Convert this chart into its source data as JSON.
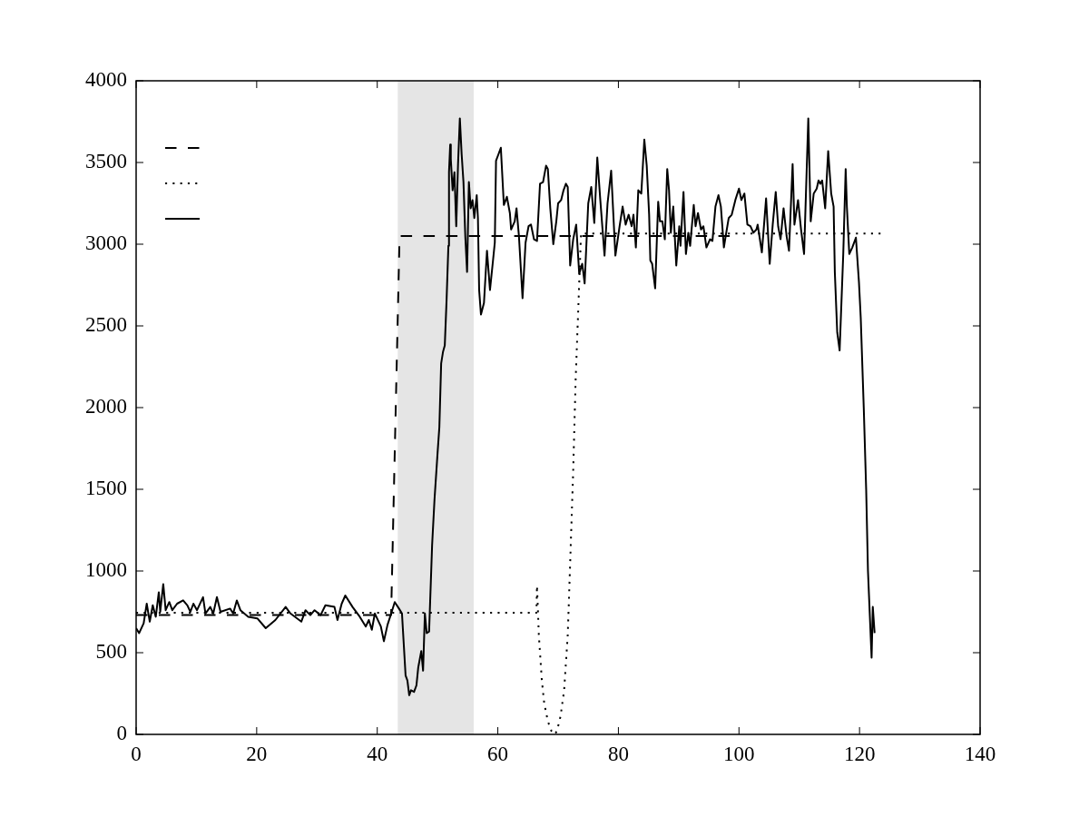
{
  "chart_data": {
    "type": "line",
    "xlim": [
      0,
      140
    ],
    "xticks": [
      0,
      20,
      40,
      60,
      80,
      100,
      120,
      140
    ],
    "ylim": [
      0,
      4000
    ],
    "yticks": [
      0,
      500,
      1000,
      1500,
      2000,
      2500,
      3000,
      3500,
      4000
    ],
    "bands": [
      {
        "axis": "x",
        "from": 43.4,
        "to": 56,
        "color": "#e5e5e5"
      }
    ],
    "series": [
      {
        "color": "#000000",
        "line_style": "dashed",
        "x": [
          0,
          42.3,
          43.7,
          99.0
        ],
        "values": [
          730,
          730,
          3050,
          3050
        ]
      },
      {
        "color": "#000000",
        "line_style": "dotted",
        "x": [
          0,
          66.4,
          66.5,
          66.8,
          67.3,
          67.7,
          68.3,
          68.9,
          69.4,
          69.8,
          70.4,
          71.0,
          71.6,
          72.0,
          72.5,
          72.9,
          73.4,
          73.8,
          123.7
        ],
        "values": [
          745,
          745,
          910,
          610,
          330,
          190,
          80,
          20,
          0,
          20,
          110,
          270,
          610,
          1050,
          1610,
          2160,
          2660,
          3065,
          3065
        ]
      },
      {
        "color": "#000000",
        "line_style": "solid",
        "x": [
          0,
          0.5,
          1.25,
          1.76,
          2.26,
          2.76,
          3.26,
          3.76,
          4.0,
          4.5,
          4.9,
          5.5,
          6.0,
          6.8,
          7.8,
          8.5,
          9.0,
          9.5,
          10.1,
          11.1,
          11.5,
          12.3,
          12.8,
          13.4,
          14.0,
          15.6,
          16.1,
          16.7,
          17.3,
          18.6,
          20.1,
          21.5,
          23.1,
          24.8,
          25.6,
          27.4,
          28.1,
          28.9,
          29.6,
          30.6,
          31.4,
          32.9,
          33.4,
          34.1,
          34.7,
          35.9,
          37.1,
          38.1,
          38.6,
          39.1,
          39.6,
          40.6,
          41.1,
          41.7,
          42.4,
          42.9,
          43.6,
          44.1,
          44.4,
          44.7,
          45.0,
          45.3,
          45.6,
          46.1,
          46.5,
          46.8,
          47.3,
          47.6,
          47.9,
          48.2,
          48.6,
          49.1,
          49.5,
          50.0,
          50.3,
          50.6,
          50.9,
          51.2,
          51.5,
          51.8,
          51.9,
          52.1,
          52.2,
          52.5,
          52.8,
          53.1,
          53.4,
          53.7,
          54.0,
          54.3,
          54.6,
          54.9,
          55.2,
          55.5,
          55.8,
          56.1,
          56.5,
          56.7,
          56.9,
          57.2,
          57.7,
          58.2,
          58.7,
          59.2,
          59.5,
          59.7,
          60.1,
          60.5,
          61.0,
          61.5,
          62.0,
          62.2,
          62.8,
          63.1,
          63.5,
          64.1,
          64.6,
          65.1,
          65.5,
          66.0,
          66.5,
          67.0,
          67.5,
          68.0,
          68.3,
          68.7,
          69.2,
          69.7,
          70.0,
          70.5,
          70.9,
          71.3,
          71.6,
          72.0,
          72.5,
          73.0,
          73.5,
          74.0,
          74.4,
          75.0,
          75.5,
          76.0,
          76.5,
          77.0,
          77.7,
          78.2,
          78.8,
          79.5,
          80.2,
          80.7,
          81.2,
          81.7,
          82.2,
          82.5,
          82.9,
          83.3,
          83.8,
          84.3,
          84.7,
          85.1,
          85.3,
          85.6,
          86.1,
          86.6,
          86.9,
          87.3,
          87.7,
          88.1,
          88.4,
          88.7,
          89.1,
          89.6,
          90.1,
          90.3,
          90.8,
          91.2,
          91.6,
          91.9,
          92.5,
          92.8,
          93.2,
          93.7,
          94.1,
          94.6,
          95.2,
          95.6,
          96.1,
          96.6,
          97.0,
          97.5,
          97.8,
          98.3,
          98.8,
          99.4,
          100.0,
          100.4,
          100.9,
          101.4,
          101.9,
          102.4,
          102.9,
          103.1,
          103.8,
          104.5,
          105.1,
          105.6,
          106.1,
          106.5,
          106.9,
          107.4,
          107.9,
          108.3,
          108.9,
          109.2,
          109.8,
          110.3,
          110.8,
          111.5,
          111.9,
          112.4,
          112.9,
          113.2,
          113.5,
          113.8,
          114.3,
          114.8,
          115.3,
          115.7,
          115.9,
          116.3,
          116.7,
          117.3,
          117.7,
          117.9,
          118.3,
          118.8,
          119.4,
          119.9,
          120.2,
          120.7,
          121.1,
          121.4,
          122.0,
          122.2,
          122.5
        ],
        "values": [
          650,
          620,
          680,
          800,
          690,
          790,
          720,
          870,
          750,
          920,
          760,
          810,
          760,
          800,
          820,
          790,
          750,
          800,
          760,
          840,
          740,
          780,
          740,
          840,
          750,
          770,
          740,
          820,
          760,
          720,
          710,
          650,
          700,
          780,
          740,
          690,
          760,
          730,
          760,
          730,
          790,
          780,
          700,
          800,
          850,
          780,
          720,
          660,
          700,
          640,
          740,
          660,
          570,
          670,
          750,
          810,
          770,
          740,
          550,
          360,
          330,
          240,
          270,
          260,
          300,
          410,
          510,
          390,
          740,
          620,
          630,
          1160,
          1440,
          1720,
          1880,
          2270,
          2340,
          2380,
          2660,
          2990,
          3440,
          3610,
          3520,
          3330,
          3440,
          3110,
          3490,
          3770,
          3550,
          3380,
          3050,
          2830,
          3380,
          3220,
          3270,
          3160,
          3300,
          3160,
          2720,
          2570,
          2640,
          2960,
          2720,
          2900,
          3010,
          3510,
          3550,
          3590,
          3240,
          3290,
          3190,
          3090,
          3140,
          3220,
          3050,
          2670,
          3010,
          3110,
          3120,
          3030,
          3020,
          3370,
          3380,
          3480,
          3460,
          3220,
          3000,
          3140,
          3250,
          3270,
          3330,
          3370,
          3350,
          2870,
          3030,
          3120,
          2820,
          2880,
          2760,
          3250,
          3350,
          3130,
          3530,
          3270,
          2930,
          3250,
          3450,
          2930,
          3110,
          3230,
          3120,
          3180,
          3110,
          3180,
          2980,
          3330,
          3310,
          3640,
          3480,
          3180,
          2900,
          2880,
          2730,
          3260,
          3140,
          3140,
          3030,
          3460,
          3330,
          3070,
          3230,
          2870,
          3110,
          2990,
          3320,
          2940,
          3070,
          2990,
          3240,
          3110,
          3190,
          3090,
          3110,
          2980,
          3030,
          3020,
          3230,
          3300,
          3230,
          2980,
          3050,
          3160,
          3180,
          3270,
          3340,
          3270,
          3310,
          3120,
          3110,
          3070,
          3090,
          3120,
          2950,
          3280,
          2880,
          3120,
          3320,
          3110,
          3030,
          3220,
          3050,
          2960,
          3490,
          3120,
          3270,
          3090,
          2940,
          3770,
          3140,
          3310,
          3340,
          3390,
          3370,
          3390,
          3220,
          3570,
          3310,
          3230,
          2830,
          2460,
          2350,
          2940,
          3460,
          3230,
          2940,
          2980,
          3040,
          2770,
          2550,
          2000,
          1500,
          1000,
          470,
          780,
          620
        ]
      }
    ]
  }
}
